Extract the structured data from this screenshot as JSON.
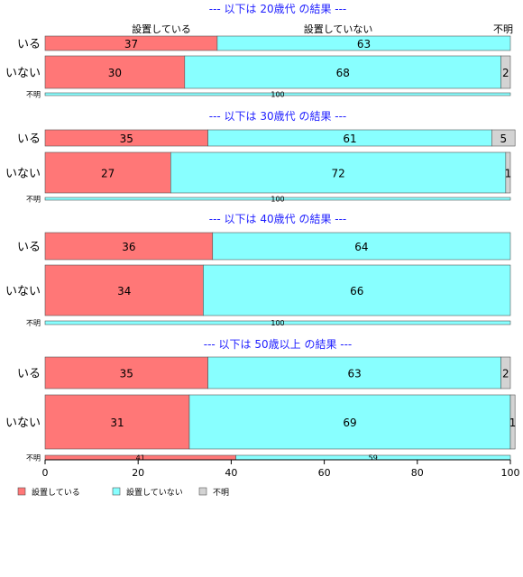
{
  "chart_data": {
    "type": "bar",
    "orientation": "horizontal",
    "stacked": true,
    "percent_scale": true,
    "xlim": [
      0,
      100
    ],
    "x_ticks": [
      "0",
      "20",
      "40",
      "60",
      "80",
      "100"
    ],
    "series": [
      {
        "name": "設置している",
        "color": "#FF7777"
      },
      {
        "name": "設置していない",
        "color": "#88FFFF"
      },
      {
        "name": "不明",
        "color": "#D3D3D3"
      }
    ],
    "legend_position": "bottom-left",
    "top_header_labels": [
      "設置している",
      "設置していない",
      "不明"
    ],
    "panels": [
      {
        "title": "--- 以下は 20歳代 の結果 ---",
        "rows": [
          {
            "label": "いる",
            "values": [
              37,
              63,
              0
            ],
            "labels": [
              "37",
              "63",
              ""
            ]
          },
          {
            "label": "いない",
            "values": [
              30,
              68,
              2
            ],
            "labels": [
              "30",
              "68",
              "2"
            ]
          },
          {
            "label": "不明",
            "values": [
              0,
              100,
              0
            ],
            "labels": [
              "",
              "100",
              ""
            ]
          }
        ]
      },
      {
        "title": "--- 以下は 30歳代 の結果 ---",
        "rows": [
          {
            "label": "いる",
            "values": [
              35,
              61,
              5
            ],
            "labels": [
              "35",
              "61",
              "5"
            ]
          },
          {
            "label": "いない",
            "values": [
              27,
              72,
              1
            ],
            "labels": [
              "27",
              "72",
              "1"
            ]
          },
          {
            "label": "不明",
            "values": [
              0,
              100,
              0
            ],
            "labels": [
              "",
              "100",
              ""
            ]
          }
        ]
      },
      {
        "title": "--- 以下は 40歳代 の結果 ---",
        "rows": [
          {
            "label": "いる",
            "values": [
              36,
              64,
              0
            ],
            "labels": [
              "36",
              "64",
              ""
            ]
          },
          {
            "label": "いない",
            "values": [
              34,
              66,
              0
            ],
            "labels": [
              "34",
              "66",
              ""
            ]
          },
          {
            "label": "不明",
            "values": [
              0,
              100,
              0
            ],
            "labels": [
              "",
              "100",
              ""
            ]
          }
        ]
      },
      {
        "title": "--- 以下は 50歳以上 の結果 ---",
        "rows": [
          {
            "label": "いる",
            "values": [
              35,
              63,
              2
            ],
            "labels": [
              "35",
              "63",
              "2"
            ]
          },
          {
            "label": "いない",
            "values": [
              31,
              69,
              1
            ],
            "labels": [
              "31",
              "69",
              "1"
            ]
          },
          {
            "label": "不明",
            "values": [
              41,
              59,
              0
            ],
            "labels": [
              "41",
              "59",
              ""
            ]
          }
        ]
      }
    ]
  }
}
